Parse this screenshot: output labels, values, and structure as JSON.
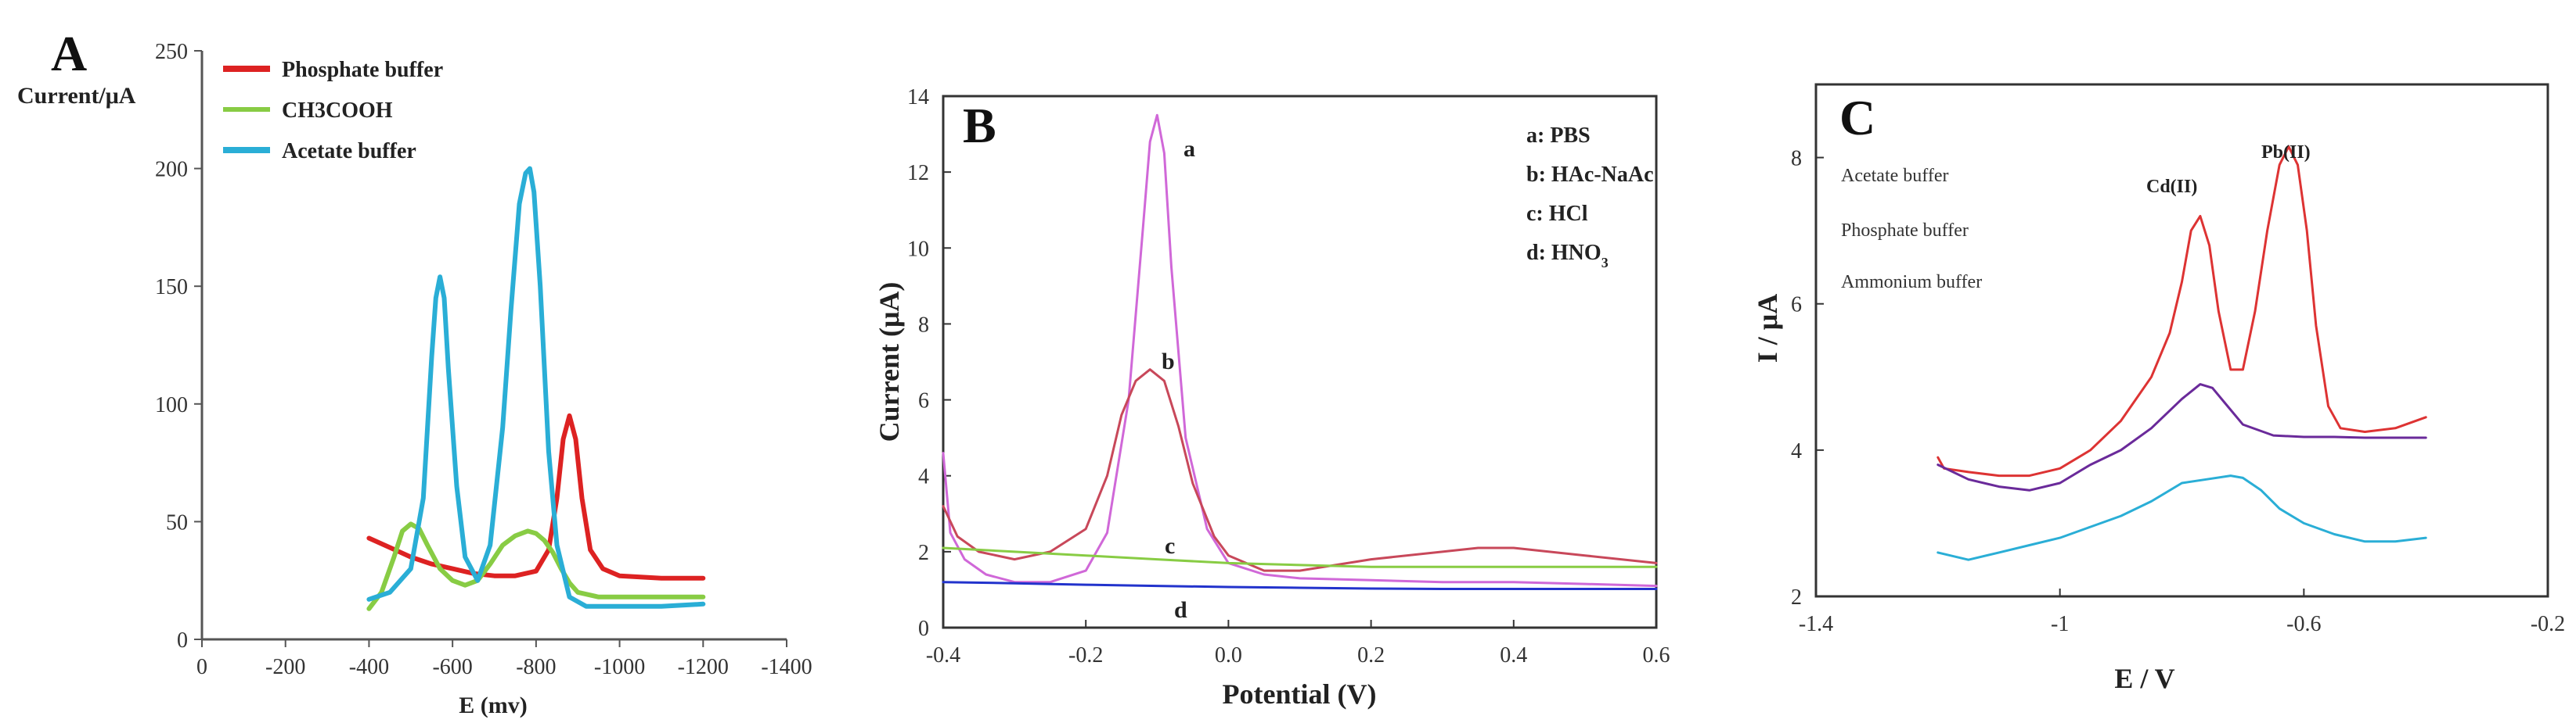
{
  "chart_data": [
    {
      "type": "line",
      "panel": "A",
      "ylabel": "Current/μA",
      "xlabel": "E (mv)",
      "xlim": [
        0,
        -1400
      ],
      "ylim": [
        0,
        250
      ],
      "xticks": [
        0,
        -200,
        -400,
        -600,
        -800,
        -1000,
        -1200,
        -1400
      ],
      "xtick_labels": [
        "0",
        "-200",
        "-400",
        "-600",
        "-800",
        "-1000",
        "-1200",
        "-1400"
      ],
      "yticks": [
        0,
        50,
        100,
        150,
        200,
        250
      ],
      "ytick_labels": [
        "0",
        "50",
        "100",
        "150",
        "200",
        "250"
      ],
      "legend": [
        {
          "label": "Phosphate buffer",
          "color": "#dd2222"
        },
        {
          "label": "CH3COOH",
          "color": "#88cc44"
        },
        {
          "label": "Acetate buffer",
          "color": "#2aaed6"
        }
      ],
      "series": [
        {
          "name": "Phosphate buffer",
          "color": "#dd2222",
          "x": [
            -400,
            -450,
            -500,
            -550,
            -600,
            -650,
            -700,
            -750,
            -800,
            -830,
            -850,
            -865,
            -880,
            -895,
            -910,
            -930,
            -960,
            -1000,
            -1100,
            -1200
          ],
          "y": [
            43,
            39,
            35,
            32,
            30,
            28,
            27,
            27,
            29,
            38,
            60,
            85,
            95,
            85,
            60,
            38,
            30,
            27,
            26,
            26
          ]
        },
        {
          "name": "CH3COOH",
          "color": "#88cc44",
          "x": [
            -400,
            -430,
            -460,
            -480,
            -500,
            -520,
            -540,
            -570,
            -600,
            -630,
            -660,
            -690,
            -720,
            -750,
            -780,
            -800,
            -820,
            -840,
            -860,
            -880,
            -900,
            -950,
            -1000,
            -1100,
            -1200
          ],
          "y": [
            13,
            20,
            35,
            46,
            49,
            47,
            40,
            30,
            25,
            23,
            25,
            32,
            40,
            44,
            46,
            45,
            42,
            37,
            30,
            24,
            20,
            18,
            18,
            18,
            18
          ]
        },
        {
          "name": "Acetate buffer",
          "color": "#2aaed6",
          "x": [
            -400,
            -450,
            -500,
            -530,
            -550,
            -560,
            -570,
            -580,
            -590,
            -610,
            -630,
            -660,
            -690,
            -720,
            -740,
            -760,
            -775,
            -785,
            -795,
            -810,
            -830,
            -850,
            -880,
            -920,
            -1000,
            -1100,
            -1200
          ],
          "y": [
            17,
            20,
            30,
            60,
            120,
            145,
            154,
            145,
            115,
            65,
            35,
            25,
            40,
            90,
            140,
            185,
            198,
            200,
            190,
            150,
            80,
            40,
            18,
            14,
            14,
            14,
            15
          ]
        }
      ]
    },
    {
      "type": "line",
      "panel": "B",
      "ylabel": "Current (μA)",
      "xlabel": "Potential (V)",
      "xlim": [
        -0.4,
        0.6
      ],
      "ylim": [
        0,
        14
      ],
      "xticks": [
        -0.4,
        -0.2,
        0.0,
        0.2,
        0.4,
        0.6
      ],
      "xtick_labels": [
        "-0.4",
        "-0.2",
        "0.0",
        "0.2",
        "0.4",
        "0.6"
      ],
      "yticks": [
        0,
        2,
        4,
        6,
        8,
        10,
        12,
        14
      ],
      "ytick_labels": [
        "0",
        "2",
        "4",
        "6",
        "8",
        "10",
        "12",
        "14"
      ],
      "legend_lines": [
        {
          "key": "a",
          "text": "a: PBS"
        },
        {
          "key": "b",
          "text": "b: HAc-NaAc"
        },
        {
          "key": "c",
          "text": "c: HCl"
        },
        {
          "key": "d",
          "text": "d: HNO",
          "subscript": "3"
        }
      ],
      "curve_labels": [
        "a",
        "b",
        "c",
        "d"
      ],
      "series": [
        {
          "name": "a",
          "color": "#d068d8",
          "x": [
            -0.4,
            -0.39,
            -0.37,
            -0.34,
            -0.3,
            -0.25,
            -0.2,
            -0.17,
            -0.14,
            -0.12,
            -0.11,
            -0.1,
            -0.09,
            -0.08,
            -0.06,
            -0.03,
            0.0,
            0.05,
            0.1,
            0.2,
            0.3,
            0.4,
            0.5,
            0.6
          ],
          "y": [
            4.6,
            2.5,
            1.8,
            1.4,
            1.2,
            1.2,
            1.5,
            2.5,
            6.0,
            10.5,
            12.8,
            13.5,
            12.5,
            9.5,
            5.0,
            2.6,
            1.7,
            1.4,
            1.3,
            1.25,
            1.2,
            1.2,
            1.15,
            1.1
          ]
        },
        {
          "name": "b",
          "color": "#c8485a",
          "x": [
            -0.4,
            -0.38,
            -0.35,
            -0.3,
            -0.25,
            -0.2,
            -0.17,
            -0.15,
            -0.13,
            -0.11,
            -0.09,
            -0.07,
            -0.05,
            -0.02,
            0.0,
            0.05,
            0.1,
            0.2,
            0.3,
            0.35,
            0.4,
            0.5,
            0.6
          ],
          "y": [
            3.2,
            2.4,
            2.0,
            1.8,
            2.0,
            2.6,
            4.0,
            5.6,
            6.5,
            6.8,
            6.5,
            5.3,
            3.8,
            2.4,
            1.9,
            1.5,
            1.5,
            1.8,
            2.0,
            2.1,
            2.1,
            1.9,
            1.7
          ]
        },
        {
          "name": "c",
          "color": "#88cc44",
          "x": [
            -0.4,
            -0.3,
            -0.2,
            -0.1,
            0.0,
            0.1,
            0.2,
            0.3,
            0.4,
            0.5,
            0.6
          ],
          "y": [
            2.1,
            2.0,
            1.9,
            1.8,
            1.7,
            1.65,
            1.6,
            1.6,
            1.6,
            1.6,
            1.6
          ]
        },
        {
          "name": "d",
          "color": "#2233cc",
          "x": [
            -0.4,
            -0.3,
            -0.2,
            -0.1,
            0.0,
            0.1,
            0.2,
            0.3,
            0.4,
            0.5,
            0.6
          ],
          "y": [
            1.2,
            1.17,
            1.13,
            1.1,
            1.07,
            1.05,
            1.03,
            1.02,
            1.02,
            1.02,
            1.02
          ]
        }
      ]
    },
    {
      "type": "line",
      "panel": "C",
      "ylabel": "I / μA",
      "xlabel": "E / V",
      "xlim": [
        -1.4,
        -0.2
      ],
      "ylim": [
        2,
        9
      ],
      "xticks": [
        -1.4,
        -1.0,
        -0.6,
        -0.2
      ],
      "xtick_labels": [
        "-1.4",
        "-1",
        "-0.6",
        "-0.2"
      ],
      "yticks": [
        2,
        4,
        6,
        8
      ],
      "ytick_labels": [
        "2",
        "4",
        "6",
        "8"
      ],
      "legend": [
        {
          "label": "Acetate buffer",
          "color": "#dd3333"
        },
        {
          "label": "Phosphate buffer",
          "color": "#6a2a9a"
        },
        {
          "label": "Ammonium buffer",
          "color": "#2aaed6"
        }
      ],
      "annotations": [
        "Cd(II)",
        "Pb(II)"
      ],
      "series": [
        {
          "name": "Acetate buffer",
          "color": "#dd3333",
          "x": [
            -1.2,
            -1.19,
            -1.15,
            -1.1,
            -1.05,
            -1.0,
            -0.95,
            -0.9,
            -0.85,
            -0.82,
            -0.8,
            -0.785,
            -0.77,
            -0.755,
            -0.74,
            -0.72,
            -0.7,
            -0.68,
            -0.66,
            -0.64,
            -0.625,
            -0.61,
            -0.595,
            -0.58,
            -0.56,
            -0.54,
            -0.5,
            -0.45,
            -0.4
          ],
          "y": [
            3.9,
            3.75,
            3.7,
            3.65,
            3.65,
            3.75,
            4.0,
            4.4,
            5.0,
            5.6,
            6.3,
            7.0,
            7.2,
            6.8,
            5.9,
            5.1,
            5.1,
            5.9,
            7.0,
            7.9,
            8.15,
            7.9,
            7.0,
            5.7,
            4.6,
            4.3,
            4.25,
            4.3,
            4.45
          ]
        },
        {
          "name": "Phosphate buffer",
          "color": "#6a2a9a",
          "x": [
            -1.2,
            -1.15,
            -1.1,
            -1.05,
            -1.0,
            -0.95,
            -0.9,
            -0.85,
            -0.8,
            -0.77,
            -0.75,
            -0.73,
            -0.7,
            -0.65,
            -0.6,
            -0.55,
            -0.5,
            -0.45,
            -0.4
          ],
          "y": [
            3.8,
            3.6,
            3.5,
            3.45,
            3.55,
            3.8,
            4.0,
            4.3,
            4.7,
            4.9,
            4.85,
            4.65,
            4.35,
            4.2,
            4.18,
            4.18,
            4.17,
            4.17,
            4.17
          ]
        },
        {
          "name": "Ammonium buffer",
          "color": "#2aaed6",
          "x": [
            -1.2,
            -1.15,
            -1.1,
            -1.05,
            -1.0,
            -0.95,
            -0.9,
            -0.85,
            -0.8,
            -0.76,
            -0.72,
            -0.7,
            -0.67,
            -0.64,
            -0.6,
            -0.55,
            -0.5,
            -0.45,
            -0.4
          ],
          "y": [
            2.6,
            2.5,
            2.6,
            2.7,
            2.8,
            2.95,
            3.1,
            3.3,
            3.55,
            3.6,
            3.65,
            3.62,
            3.45,
            3.2,
            3.0,
            2.85,
            2.75,
            2.75,
            2.8
          ]
        }
      ]
    }
  ]
}
